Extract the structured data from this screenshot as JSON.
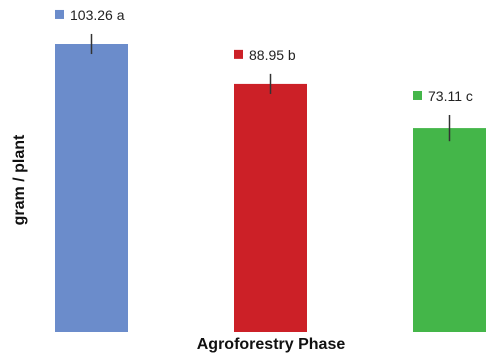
{
  "chart_data": {
    "type": "bar",
    "title": "",
    "xlabel": "Agroforestry Phase",
    "ylabel": "gram / plant",
    "categories": [
      "",
      "",
      ""
    ],
    "values": [
      103.26,
      88.95,
      73.11
    ],
    "data_labels": [
      "103.26 a",
      "88.95 b",
      "73.11 c"
    ],
    "error": [
      3.6,
      3.6,
      4.7
    ],
    "colors": [
      "#6b8ccb",
      "#cc2027",
      "#44b649"
    ],
    "ylim": [
      0,
      103.26
    ],
    "grid": false,
    "legend": "none"
  }
}
